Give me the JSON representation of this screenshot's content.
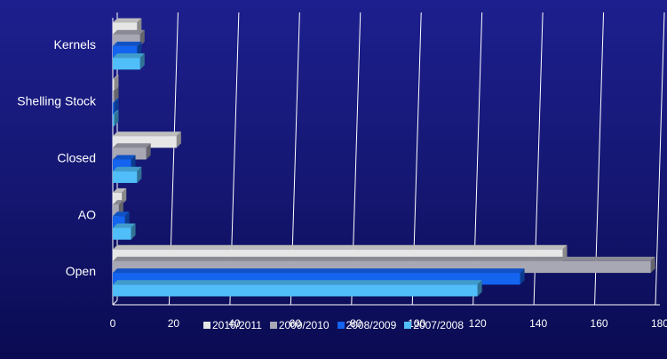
{
  "chart_data": {
    "type": "bar",
    "orientation": "horizontal",
    "style": "3d",
    "categories": [
      "Kernels",
      "Shelling Stock",
      "Closed",
      "AO",
      "Open"
    ],
    "series": [
      {
        "name": "2010/2011",
        "color": "#e6e6e6",
        "values": [
          8,
          0,
          21,
          3,
          148
        ]
      },
      {
        "name": "2009/2010",
        "color": "#a8a8b4",
        "values": [
          9,
          0,
          11,
          2,
          177
        ]
      },
      {
        "name": "2008/2009",
        "color": "#1464f0",
        "values": [
          8,
          0,
          6,
          4,
          134
        ]
      },
      {
        "name": "2007/2008",
        "color": "#50bef8",
        "values": [
          9,
          0,
          8,
          6,
          120
        ]
      }
    ],
    "xlim": [
      0,
      180
    ],
    "xticks": [
      "0",
      "20",
      "40",
      "60",
      "80",
      "100",
      "120",
      "140",
      "160",
      "180"
    ],
    "grid": true,
    "legend_position": "bottom"
  }
}
